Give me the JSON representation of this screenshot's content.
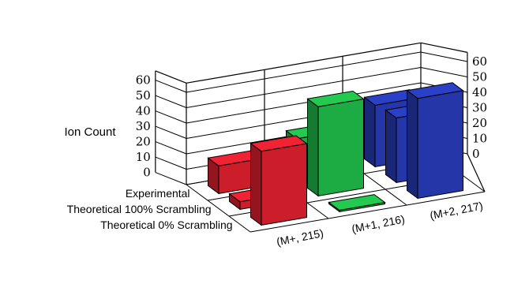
{
  "chart_data": {
    "type": "bar",
    "subtype": "3d-grouped",
    "title": "",
    "ylabel": "Ion Count",
    "ylim": [
      0,
      60
    ],
    "yticks": [
      "0",
      "10",
      "20",
      "30",
      "40",
      "50",
      "60"
    ],
    "categories": [
      "(M+, 215)",
      "(M+1, 216)",
      "(M+2, 217)"
    ],
    "series": [
      {
        "name": "Experimental",
        "values": [
          18,
          27,
          40
        ]
      },
      {
        "name": "Theoretical 100% Scrambling",
        "values": [
          5,
          58,
          42
        ]
      },
      {
        "name": "Theoretical 0% Scrambling",
        "values": [
          48,
          1,
          65
        ]
      }
    ],
    "category_colors": [
      "#cc1d2b",
      "#1dab44",
      "#2436a8"
    ],
    "category_face_colors": [
      "#cc1d2b",
      "#1dab44",
      "#2436a8"
    ],
    "grid": true
  }
}
